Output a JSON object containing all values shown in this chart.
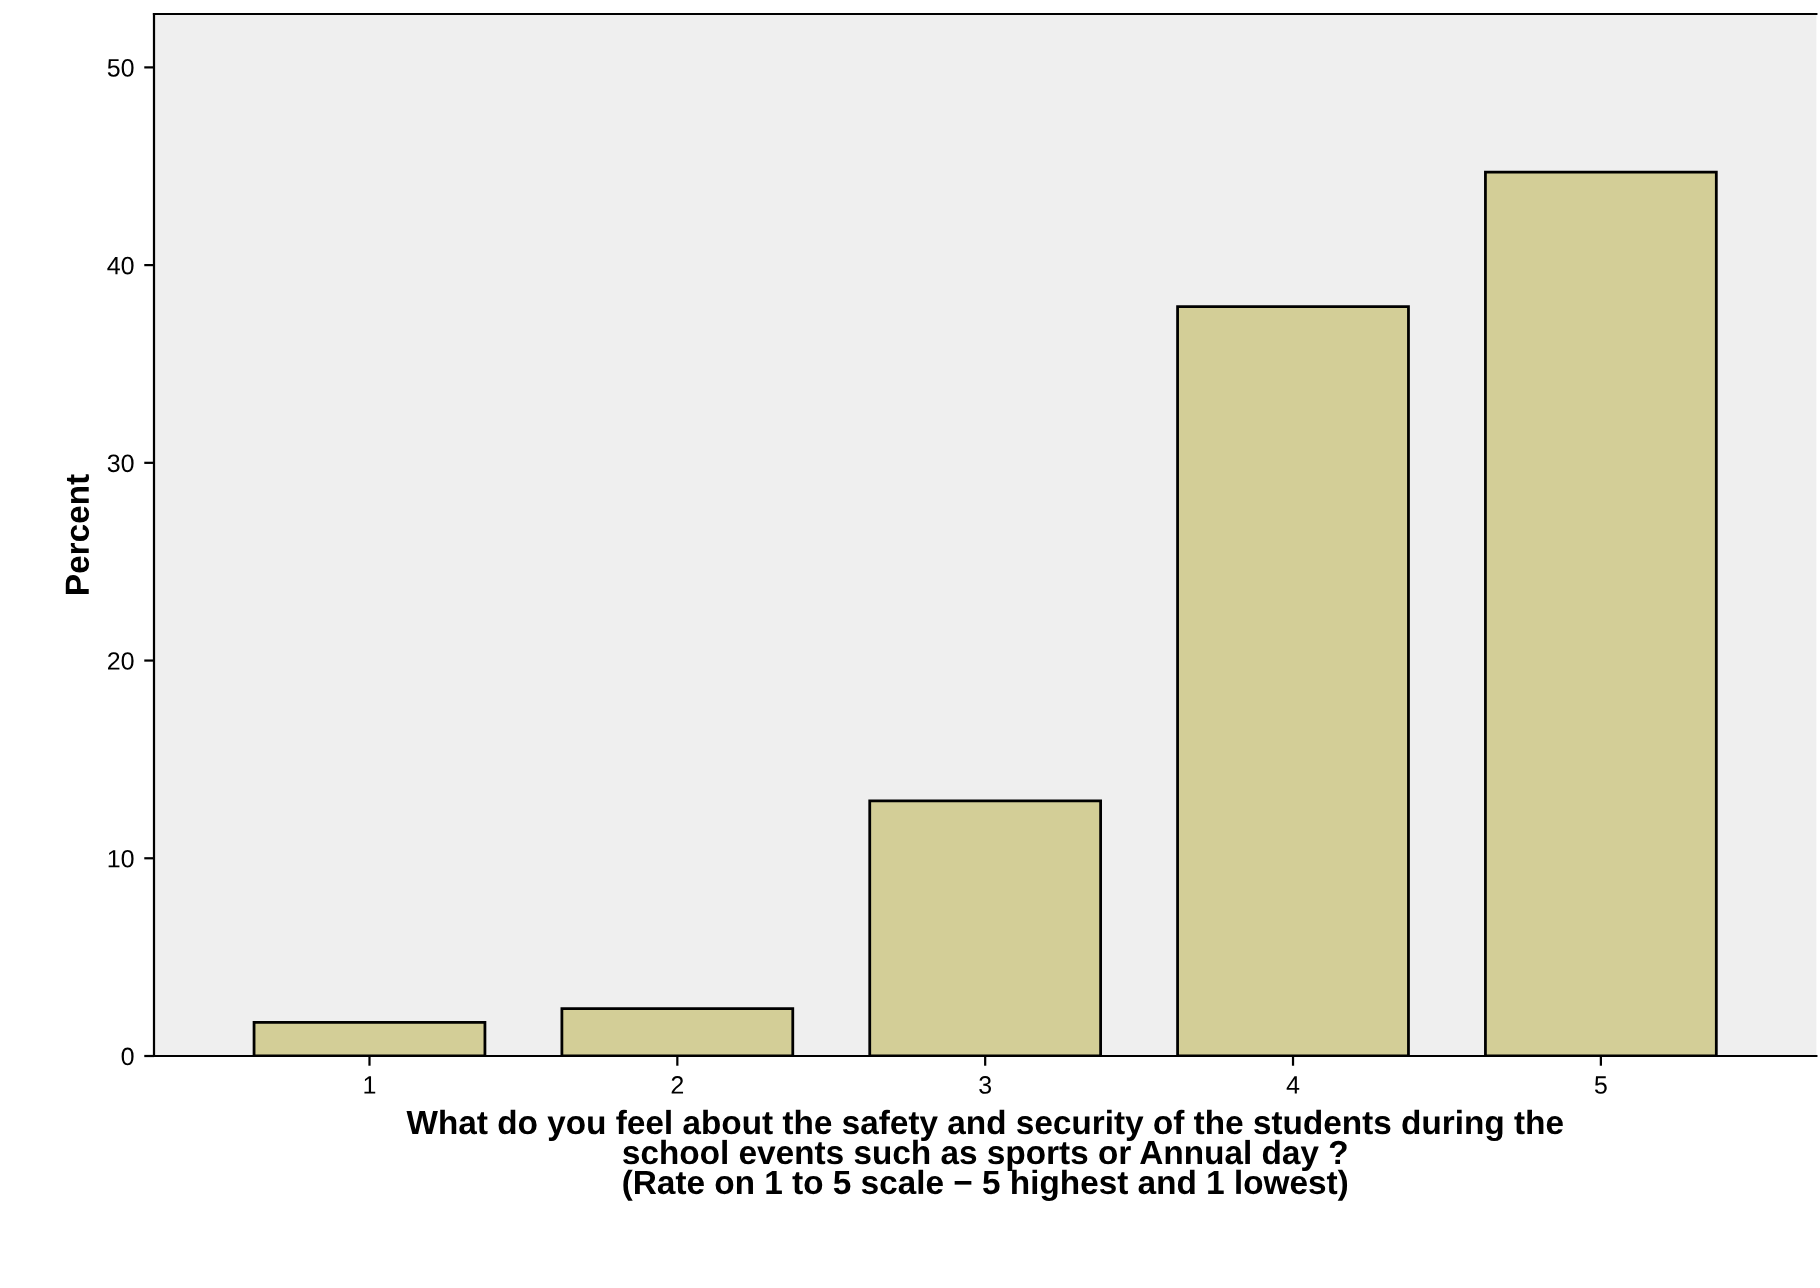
{
  "chart_data": {
    "type": "bar",
    "xlabel": "What do you feel about the safety and security of the students during the\nschool events such as sports or Annual day ?\n(Rate on 1 to 5 scale − 5 highest and 1 lowest)",
    "ylabel": "Percent",
    "categories": [
      "1",
      "2",
      "3",
      "4",
      "5"
    ],
    "values": [
      1.7,
      2.4,
      12.9,
      37.9,
      44.7
    ],
    "color": "#d3ce97",
    "ylim": [
      0,
      52.7
    ],
    "yticks": [
      0,
      10,
      20,
      30,
      40,
      50
    ],
    "grid": false,
    "legend": false
  }
}
